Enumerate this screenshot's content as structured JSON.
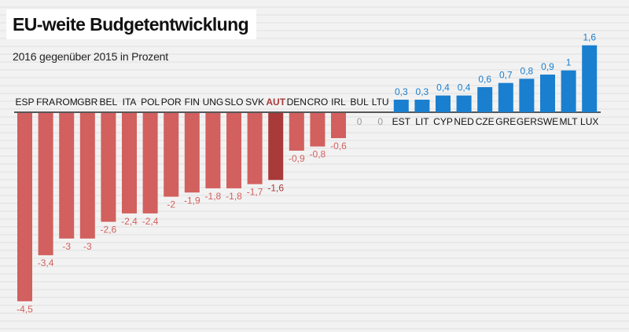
{
  "title": "EU-weite Budgetentwicklung",
  "subtitle": "2016 gegenüber 2015 in Prozent",
  "colors": {
    "negative": "#d2605e",
    "highlight": "#a83a3a",
    "positive": "#1a7fcf",
    "zero": "#999999",
    "axis": "#222222"
  },
  "chart_data": {
    "type": "bar",
    "categories": [
      "ESP",
      "FRA",
      "ROM",
      "GBR",
      "BEL",
      "ITA",
      "POL",
      "POR",
      "FIN",
      "UNG",
      "SLO",
      "SVK",
      "AUT",
      "DEN",
      "CRO",
      "IRL",
      "BUL",
      "LTU",
      "EST",
      "LIT",
      "CYP",
      "NED",
      "CZE",
      "GRE",
      "GER",
      "SWE",
      "MLT",
      "LUX"
    ],
    "values": [
      -4.5,
      -3.4,
      -3,
      -3,
      -2.6,
      -2.4,
      -2.4,
      -2,
      -1.9,
      -1.8,
      -1.8,
      -1.7,
      -1.6,
      -0.9,
      -0.8,
      -0.6,
      0,
      0,
      0.3,
      0.3,
      0.4,
      0.4,
      0.6,
      0.7,
      0.8,
      0.9,
      1,
      1.6
    ],
    "value_labels": [
      "-4,5",
      "-3,4",
      "-3",
      "-3",
      "-2,6",
      "-2,4",
      "-2,4",
      "-2",
      "-1,9",
      "-1,8",
      "-1,8",
      "-1,7",
      "-1,6",
      "-0,9",
      "-0,8",
      "-0,6",
      "0",
      "0",
      "0,3",
      "0,3",
      "0,4",
      "0,4",
      "0,6",
      "0,7",
      "0,8",
      "0,9",
      "1",
      "1,6"
    ],
    "highlight": "AUT",
    "ylim": [
      -4.5,
      1.6
    ],
    "grid": false,
    "legend": "none"
  }
}
